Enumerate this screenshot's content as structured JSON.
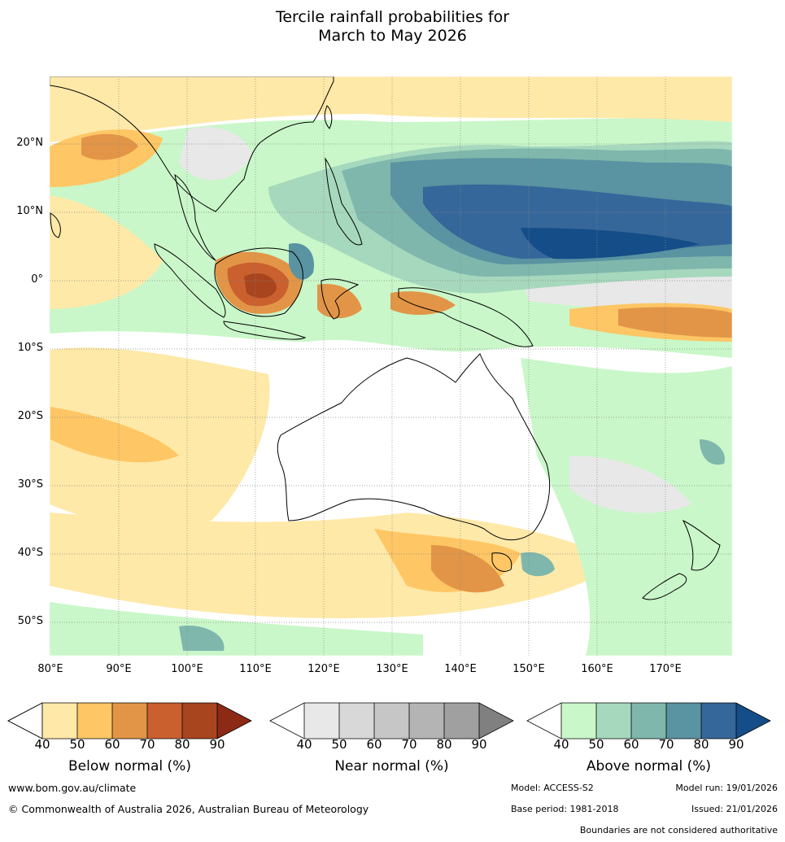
{
  "title": {
    "line1": "Tercile rainfall probabilities for",
    "line2": "March to May 2026"
  },
  "map": {
    "lon_labels": [
      "80°E",
      "90°E",
      "100°E",
      "110°E",
      "120°E",
      "130°E",
      "140°E",
      "150°E",
      "160°E",
      "170°E"
    ],
    "lat_labels": [
      "20°N",
      "10°N",
      "0°",
      "10°S",
      "20°S",
      "30°S",
      "40°S",
      "50°S"
    ]
  },
  "colorbars": {
    "below": {
      "title": "Below normal (%)",
      "ticks": [
        "40",
        "50",
        "60",
        "70",
        "80",
        "90"
      ],
      "colors": [
        "#ffe9a8",
        "#fec664",
        "#e29547",
        "#c9602e",
        "#a8451f",
        "#8c2a15"
      ]
    },
    "near": {
      "title": "Near normal (%)",
      "ticks": [
        "40",
        "50",
        "60",
        "70",
        "80",
        "90"
      ],
      "colors": [
        "#e8e8e8",
        "#d8d8d8",
        "#c6c6c6",
        "#b4b4b4",
        "#a0a0a0",
        "#808080"
      ]
    },
    "above": {
      "title": "Above normal (%)",
      "ticks": [
        "40",
        "50",
        "60",
        "70",
        "80",
        "90"
      ],
      "colors": [
        "#c9f7c9",
        "#a6d8bd",
        "#7fb7ad",
        "#5a93a1",
        "#36679a",
        "#154d88"
      ]
    }
  },
  "footer": {
    "website": "www.bom.gov.au/climate",
    "copyright": "© Commonwealth of Australia 2026, Australian Bureau of Meteorology",
    "model": "Model: ACCESS-S2",
    "model_run": "Model run: 19/01/2026",
    "base_period": "Base period: 1981-2018",
    "issued": "Issued: 21/01/2026",
    "disclaimer": "Boundaries are not considered authoritative"
  }
}
